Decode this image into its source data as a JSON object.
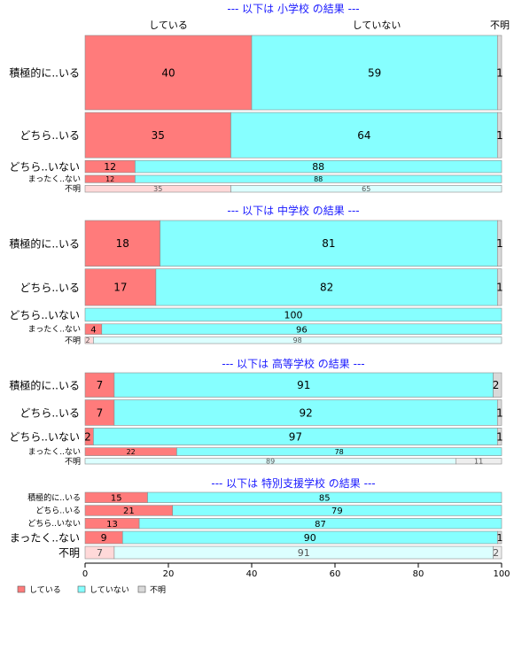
{
  "chart_data": {
    "type": "bar",
    "stacked": true,
    "orientation": "horizontal",
    "normalized": true,
    "xlim": [
      0,
      100
    ],
    "x_ticks": [
      "0",
      "20",
      "40",
      "60",
      "80",
      "100"
    ],
    "grid": false,
    "legend_position": "bottom-left",
    "legend": [
      {
        "key": "doing",
        "label": "している",
        "color": "#ff7b7b"
      },
      {
        "key": "not_doing",
        "label": "していない",
        "color": "#86ffff"
      },
      {
        "key": "unknown",
        "label": "不明",
        "color": "#d9d9d9"
      }
    ],
    "column_headers": [
      "している",
      "していない",
      "不明"
    ],
    "panels": [
      {
        "title": "--- 以下は 小学校 の結果 ---",
        "rows": [
          {
            "label": "積極的に..いる",
            "values": [
              40,
              59,
              1
            ],
            "labels": [
              "40",
              "59",
              "1"
            ],
            "weight": 11
          },
          {
            "label": "どちら..いる",
            "values": [
              35,
              64,
              1
            ],
            "labels": [
              "35",
              "64",
              "1"
            ],
            "weight": 6.7
          },
          {
            "label": "どちら..いない",
            "values": [
              12,
              88,
              0
            ],
            "labels": [
              "12",
              "88",
              ""
            ],
            "weight": 1.8
          },
          {
            "label": "まったく..ない",
            "values": [
              12,
              88,
              0
            ],
            "labels": [
              "12",
              "88",
              ""
            ],
            "weight": 1.1
          },
          {
            "label": "不明",
            "values": [
              35,
              65,
              0
            ],
            "labels": [
              "35",
              "65",
              ""
            ],
            "weight": 1.0,
            "faded": true
          }
        ]
      },
      {
        "title": "--- 以下は 中学校 の結果 ---",
        "rows": [
          {
            "label": "積極的に..いる",
            "values": [
              18,
              81,
              1
            ],
            "labels": [
              "18",
              "81",
              "1"
            ],
            "weight": 7.0
          },
          {
            "label": "どちら..いる",
            "values": [
              17,
              82,
              1
            ],
            "labels": [
              "17",
              "82",
              "1"
            ],
            "weight": 5.6
          },
          {
            "label": "どちら..いない",
            "values": [
              0,
              100,
              0
            ],
            "labels": [
              "",
              "100",
              ""
            ],
            "weight": 2.0
          },
          {
            "label": "まったく..ない",
            "values": [
              4,
              96,
              0
            ],
            "labels": [
              "4",
              "96",
              ""
            ],
            "weight": 1.6
          },
          {
            "label": "不明",
            "values": [
              2,
              98,
              0
            ],
            "labels": [
              "2",
              "98",
              ""
            ],
            "weight": 1.0,
            "faded": true
          }
        ]
      },
      {
        "title": "--- 以下は 高等学校 の結果 ---",
        "rows": [
          {
            "label": "積極的に..いる",
            "values": [
              7,
              91,
              2
            ],
            "labels": [
              "7",
              "91",
              "2"
            ],
            "weight": 4.3
          },
          {
            "label": "どちら..いる",
            "values": [
              7,
              92,
              1
            ],
            "labels": [
              "7",
              "92",
              "1"
            ],
            "weight": 4.5
          },
          {
            "label": "どちら..いない",
            "values": [
              2,
              97,
              1
            ],
            "labels": [
              "2",
              "97",
              "1"
            ],
            "weight": 3.0
          },
          {
            "label": "まったく..ない",
            "values": [
              22,
              78,
              0
            ],
            "labels": [
              "22",
              "78",
              ""
            ],
            "weight": 1.4
          },
          {
            "label": "不明",
            "values": [
              0,
              89,
              11
            ],
            "labels": [
              "",
              "89",
              "11"
            ],
            "weight": 1.0,
            "faded": true
          }
        ]
      },
      {
        "title": "--- 以下は 特別支援学校 の結果 ---",
        "rows": [
          {
            "label": "積極的に..いる",
            "values": [
              15,
              85,
              0
            ],
            "labels": [
              "15",
              "85",
              ""
            ],
            "weight": 1.0
          },
          {
            "label": "どちら..いる",
            "values": [
              21,
              79,
              0
            ],
            "labels": [
              "21",
              "79",
              ""
            ],
            "weight": 1.0
          },
          {
            "label": "どちら..いない",
            "values": [
              13,
              87,
              0
            ],
            "labels": [
              "13",
              "87",
              ""
            ],
            "weight": 1.0
          },
          {
            "label": "まったく..ない",
            "values": [
              9,
              90,
              1
            ],
            "labels": [
              "9",
              "90",
              "1"
            ],
            "weight": 1.2
          },
          {
            "label": "不明",
            "values": [
              7,
              91,
              2
            ],
            "labels": [
              "7",
              "91",
              "2"
            ],
            "weight": 1.2,
            "faded": true
          }
        ]
      }
    ]
  }
}
